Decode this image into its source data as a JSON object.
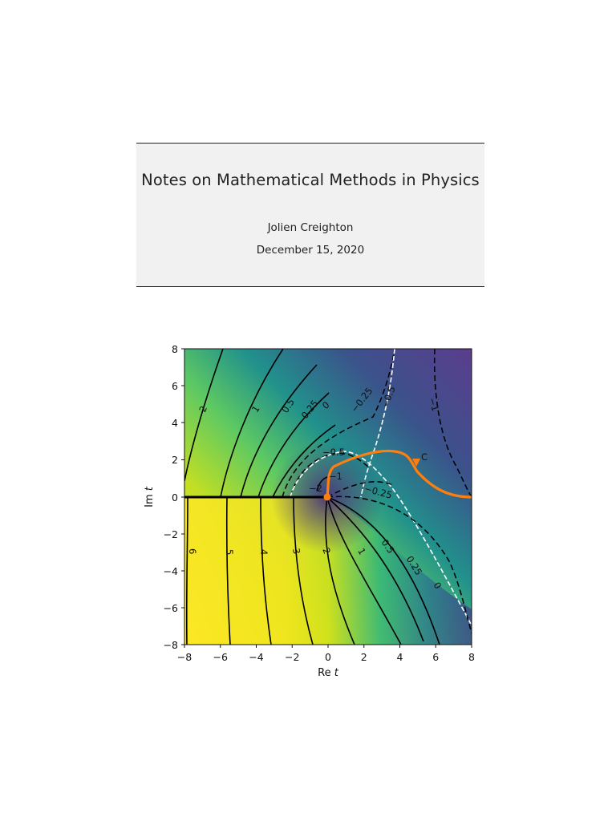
{
  "document": {
    "title": "Notes on Mathematical Methods in Physics",
    "author": "Jolien Creighton",
    "date": "December 15, 2020"
  },
  "chart_data": {
    "type": "contour",
    "xlabel_prefix": "Re",
    "xlabel_var": "t",
    "ylabel_prefix": "Im",
    "ylabel_var": "t",
    "xlim": [
      -8,
      8
    ],
    "ylim": [
      -8,
      8
    ],
    "xticks": [
      "−8",
      "−6",
      "−4",
      "−2",
      "0",
      "2",
      "4",
      "6",
      "8"
    ],
    "yticks": [
      "8",
      "6",
      "4",
      "2",
      "0",
      "−2",
      "−4",
      "−6",
      "−8"
    ],
    "contour_labels": [
      "2",
      "1",
      "0.5",
      "0.25",
      "0",
      "−0.25",
      "−0.5",
      "−1",
      "−0.5",
      "−0.25",
      "−2",
      "−1",
      "6",
      "5",
      "4",
      "3",
      "2",
      "1",
      "0.5",
      "0.25",
      "0"
    ],
    "path_label": "C",
    "branch_cut": "negative real axis",
    "colors": {
      "high": "#fde725",
      "mid": "#21918c",
      "low": "#46337e",
      "path": "#ff7f0e",
      "separatrix": "#ffffff"
    }
  }
}
